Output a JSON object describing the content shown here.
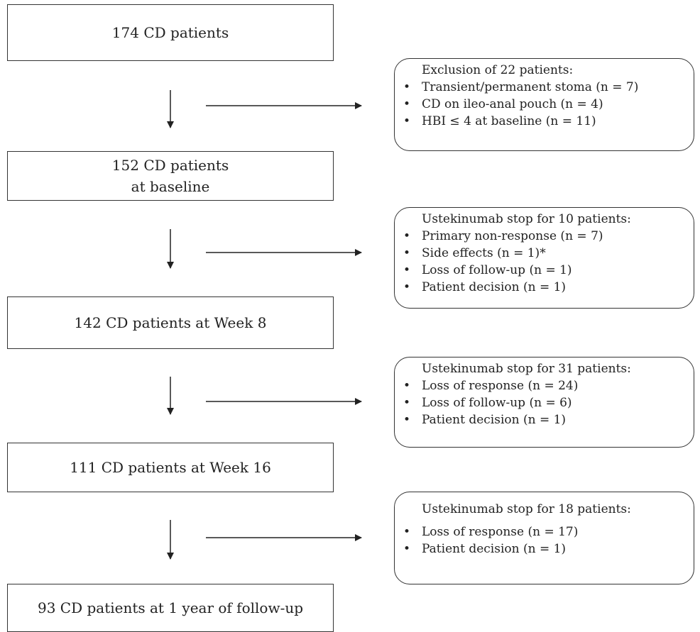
{
  "boxes": [
    {
      "text": "174 CD patients"
    },
    {
      "line1": "152 CD patients",
      "line2": "at baseline"
    },
    {
      "text": "142 CD patients at Week 8"
    },
    {
      "text": "111 CD patients at Week 16"
    },
    {
      "text": "93 CD patients at 1 year of follow-up"
    }
  ],
  "notes": [
    {
      "title": "Exclusion of 22 patients:",
      "items": [
        "Transient/permanent stoma (n = 7)",
        "CD on ileo-anal pouch (n = 4)",
        "HBI ≤ 4 at baseline (n = 11)"
      ]
    },
    {
      "title": "Ustekinumab stop for 10 patients:",
      "items": [
        "Primary non-response (n = 7)",
        "Side effects (n = 1)*",
        "Loss of follow-up (n = 1)",
        "Patient decision (n = 1)"
      ]
    },
    {
      "title": "Ustekinumab stop for 31 patients:",
      "items": [
        "Loss of response (n = 24)",
        "Loss of follow-up (n = 6)",
        "Patient decision (n = 1)"
      ]
    },
    {
      "title": "Ustekinumab stop for 18 patients:",
      "items": [
        "Loss of response (n = 17)",
        "Patient decision (n = 1)"
      ]
    }
  ]
}
